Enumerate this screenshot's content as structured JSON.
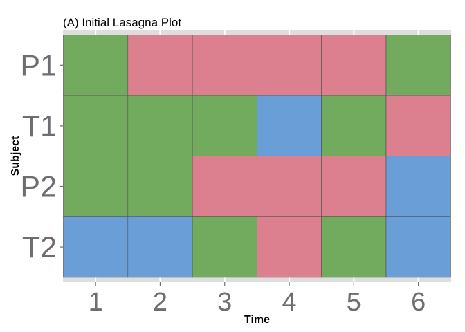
{
  "chart_data": {
    "type": "heatmap",
    "title": "(A)  Initial Lasagna Plot",
    "xlabel": "Time",
    "ylabel": "Subject",
    "x": [
      "1",
      "2",
      "3",
      "4",
      "5",
      "6"
    ],
    "y": [
      "P1",
      "T1",
      "P2",
      "T2"
    ],
    "categories": {
      "green": "#73ab5e",
      "pink": "#dc7f8f",
      "blue": "#6a9ed6"
    },
    "matrix": [
      [
        "green",
        "pink",
        "pink",
        "pink",
        "pink",
        "green"
      ],
      [
        "green",
        "green",
        "green",
        "blue",
        "green",
        "pink"
      ],
      [
        "green",
        "green",
        "pink",
        "pink",
        "pink",
        "blue"
      ],
      [
        "blue",
        "blue",
        "green",
        "pink",
        "green",
        "blue"
      ]
    ],
    "grid": true,
    "legend": "none"
  }
}
